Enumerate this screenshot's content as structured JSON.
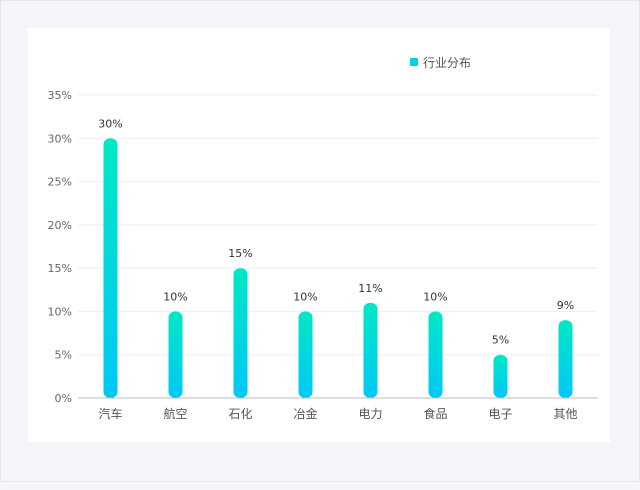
{
  "colors": {
    "bar_top": "#00e8c4",
    "bar_bottom": "#00c8f6",
    "legend_swatch": "#00d0e8",
    "grid": "#eceef1",
    "axis": "#bdbdbd"
  },
  "chart_data": {
    "type": "bar",
    "title": "",
    "xlabel": "",
    "ylabel": "",
    "legend": {
      "position": "top-right",
      "entries": [
        "行业分布"
      ]
    },
    "categories": [
      "汽车",
      "航空",
      "石化",
      "冶金",
      "电力",
      "食品",
      "电子",
      "其他"
    ],
    "series": [
      {
        "name": "行业分布",
        "values": [
          30,
          10,
          15,
          10,
          11,
          10,
          5,
          9
        ],
        "data_labels": [
          "30%",
          "10%",
          "15%",
          "10%",
          "11%",
          "10%",
          "5%",
          "9%"
        ]
      }
    ],
    "ylim": [
      0,
      35
    ],
    "yticks": [
      0,
      5,
      10,
      15,
      20,
      25,
      30,
      35
    ],
    "ytick_labels": [
      "0%",
      "5%",
      "10%",
      "15%",
      "20%",
      "25%",
      "30%",
      "35%"
    ],
    "grid": true
  }
}
